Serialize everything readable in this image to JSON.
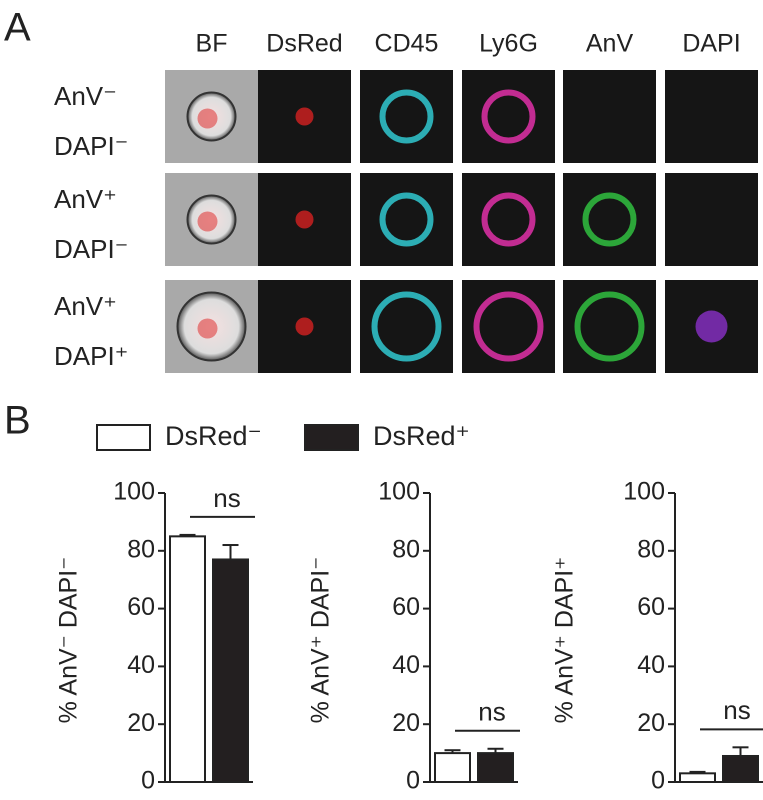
{
  "panel_a": {
    "label": "A",
    "columns": [
      "BF",
      "DsRed",
      "CD45",
      "Ly6G",
      "AnV",
      "DAPI"
    ],
    "rows": [
      [
        "AnV⁻",
        "DAPI⁻"
      ],
      [
        "AnV⁺",
        "DAPI⁻"
      ],
      [
        "AnV⁺",
        "DAPI⁺"
      ]
    ]
  },
  "panel_b": {
    "label": "B"
  },
  "chart_data": [
    {
      "type": "bar",
      "ylabel": "% AnV⁻ DAPI⁻",
      "categories": [
        null
      ],
      "series": [
        {
          "name": "DsRed⁻",
          "color": "#ffffff",
          "values": [
            85
          ],
          "errors": [
            0.5
          ]
        },
        {
          "name": "DsRed⁺",
          "color": "#231f20",
          "values": [
            77
          ],
          "errors": [
            5
          ]
        }
      ],
      "ylim": [
        0,
        100
      ],
      "yticks": [
        0,
        20,
        40,
        60,
        80,
        100
      ],
      "annotation": "ns"
    },
    {
      "type": "bar",
      "ylabel": "% AnV⁺ DAPI⁻",
      "categories": [
        null
      ],
      "series": [
        {
          "color": "#ffffff",
          "values": [
            10
          ],
          "errors": [
            1
          ]
        },
        {
          "color": "#231f20",
          "values": [
            10
          ],
          "errors": [
            1.5
          ]
        }
      ],
      "ylim": [
        0,
        100
      ],
      "yticks": [
        0,
        20,
        40,
        60,
        80,
        100
      ],
      "annotation": "ns"
    },
    {
      "type": "bar",
      "ylabel": "% AnV⁺ DAPI⁺",
      "categories": [
        null
      ],
      "series": [
        {
          "color": "#ffffff",
          "values": [
            3
          ],
          "errors": [
            0.5
          ]
        },
        {
          "color": "#231f20",
          "values": [
            9
          ],
          "errors": [
            3
          ]
        }
      ],
      "ylim": [
        0,
        100
      ],
      "yticks": [
        0,
        20,
        40,
        60,
        80,
        100
      ],
      "annotation": "ns"
    }
  ]
}
